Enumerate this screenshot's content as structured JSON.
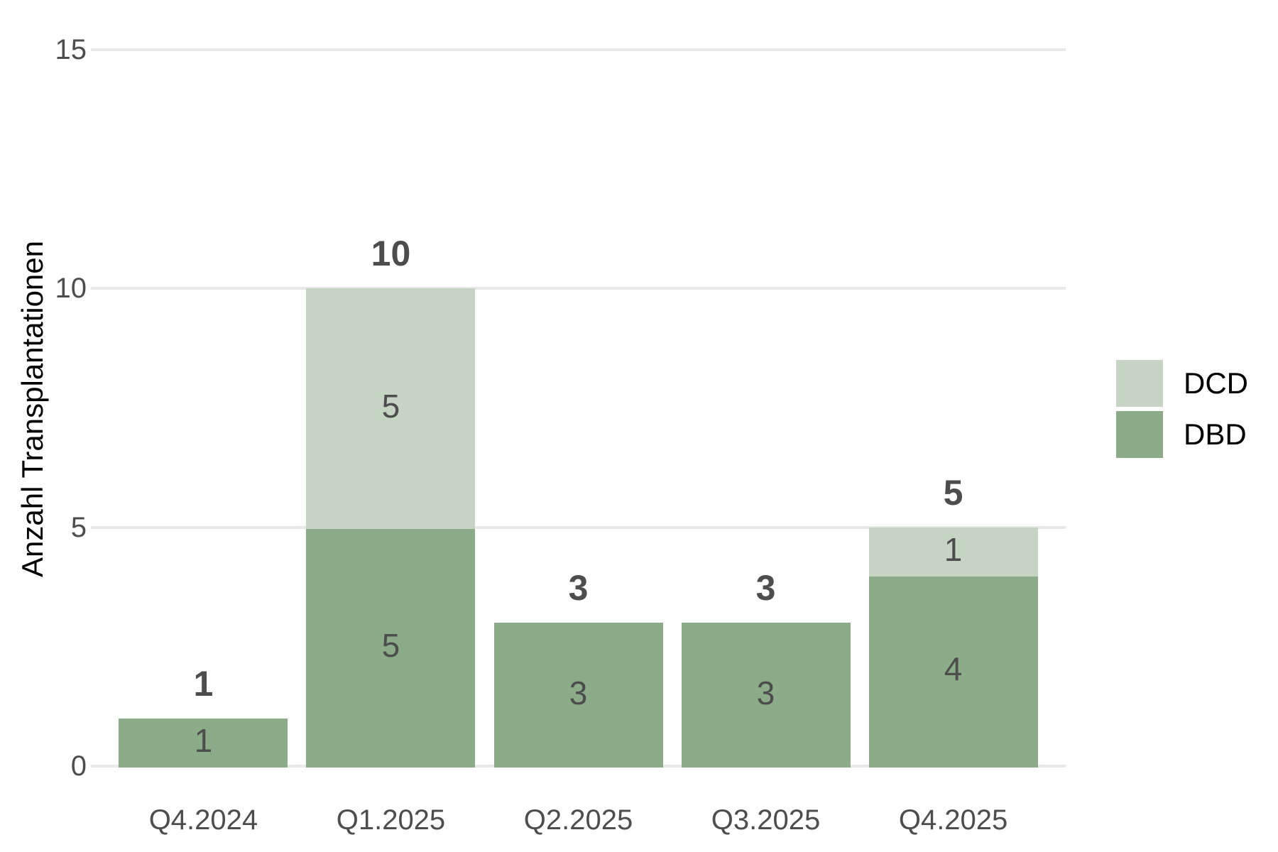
{
  "chart_data": {
    "type": "bar",
    "stacked": true,
    "title": "",
    "categories": [
      "Q4.2024",
      "Q1.2025",
      "Q2.2025",
      "Q3.2025",
      "Q4.2025"
    ],
    "series": [
      {
        "name": "DCD",
        "color": "#c5d4c3",
        "values": [
          0,
          5,
          0,
          0,
          1
        ]
      },
      {
        "name": "DBD",
        "color": "#8bab89",
        "values": [
          1,
          5,
          3,
          3,
          4
        ]
      }
    ],
    "stack_order_bottom_to_top": [
      "DBD",
      "DCD"
    ],
    "totals": [
      1,
      10,
      3,
      3,
      5
    ],
    "xlabel": "",
    "ylabel": "Anzahl Transplantationen",
    "yticks": [
      0,
      5,
      10,
      15
    ],
    "ytick_labels": [
      "0",
      "5",
      "10",
      "15"
    ],
    "ylim": [
      0,
      15
    ],
    "grid": true,
    "legend_position": "right",
    "bar_value_labels_inside": true,
    "bar_total_labels_above": true
  },
  "colors": {
    "background": "#ffffff",
    "gridline": "#e8e8e8",
    "axis_text": "#4d4d4d",
    "bar_label_text": "#4d4d4d",
    "total_label_text": "#4d4d4d",
    "axis_title_text": "#000000",
    "legend_text": "#000000",
    "dcd_fill": "#c5d4c3",
    "dbd_fill": "#8bab89"
  }
}
